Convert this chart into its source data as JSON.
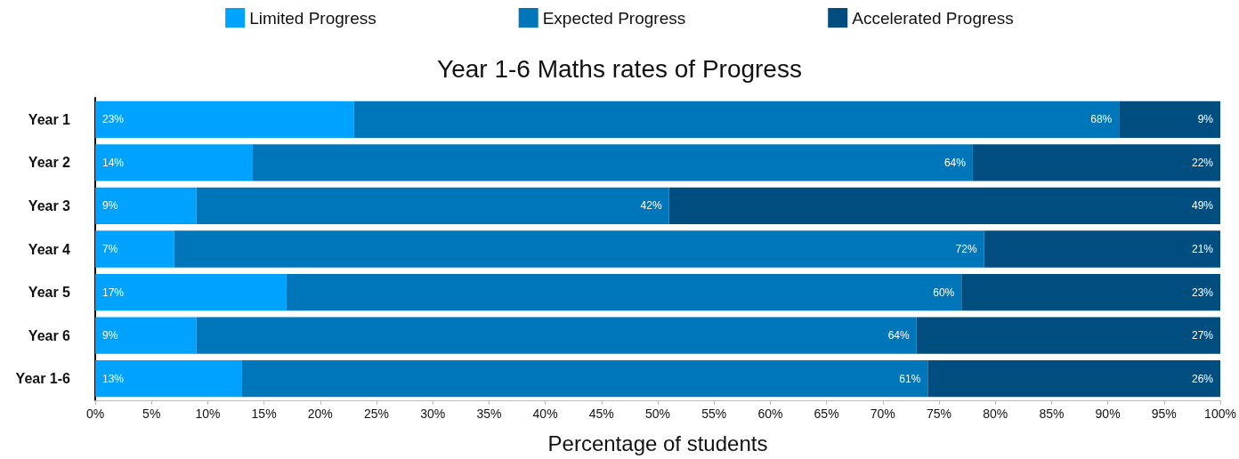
{
  "chart_data": {
    "type": "bar",
    "orientation": "horizontal",
    "stacked": true,
    "title": "Year 1-6 Maths rates of Progress",
    "xlabel": "Percentage of students",
    "categories": [
      "Year 1",
      "Year 2",
      "Year 3",
      "Year 4",
      "Year 5",
      "Year 6",
      "Year 1-6"
    ],
    "series": [
      {
        "name": "Limited Progress",
        "color": "#00a2ff",
        "values": [
          23,
          14,
          9,
          7,
          17,
          9,
          13
        ],
        "value_labels": [
          "23%",
          "14%",
          "9%",
          "7%",
          "17%",
          "9%",
          "13%"
        ]
      },
      {
        "name": "Expected Progress",
        "color": "#0076ba",
        "values": [
          68,
          64,
          42,
          72,
          60,
          64,
          61
        ],
        "value_labels": [
          "68%",
          "64%",
          "42%",
          "72%",
          "60%",
          "64%",
          "61%"
        ]
      },
      {
        "name": "Accelerated Progress",
        "color": "#004d80",
        "values": [
          9,
          22,
          49,
          21,
          23,
          27,
          26
        ],
        "value_labels": [
          "9%",
          "22%",
          "49%",
          "21%",
          "23%",
          "27%",
          "26%"
        ]
      }
    ],
    "xlim": [
      0,
      100
    ],
    "xticks": [
      {
        "value": 0,
        "label": "0%"
      },
      {
        "value": 5,
        "label": "5%"
      },
      {
        "value": 10,
        "label": "10%"
      },
      {
        "value": 15,
        "label": "15%"
      },
      {
        "value": 20,
        "label": "20%"
      },
      {
        "value": 25,
        "label": "25%"
      },
      {
        "value": 30,
        "label": "30%"
      },
      {
        "value": 35,
        "label": "35%"
      },
      {
        "value": 40,
        "label": "40%"
      },
      {
        "value": 45,
        "label": "45%"
      },
      {
        "value": 50,
        "label": "50%"
      },
      {
        "value": 55,
        "label": "55%"
      },
      {
        "value": 60,
        "label": "60%"
      },
      {
        "value": 65,
        "label": "65%"
      },
      {
        "value": 70,
        "label": "70%"
      },
      {
        "value": 75,
        "label": "75%"
      },
      {
        "value": 80,
        "label": "80%"
      },
      {
        "value": 85,
        "label": "85%"
      },
      {
        "value": 90,
        "label": "90%"
      },
      {
        "value": 95,
        "label": "95%"
      },
      {
        "value": 100,
        "label": "100%"
      }
    ],
    "grid": false,
    "legend": "top"
  }
}
